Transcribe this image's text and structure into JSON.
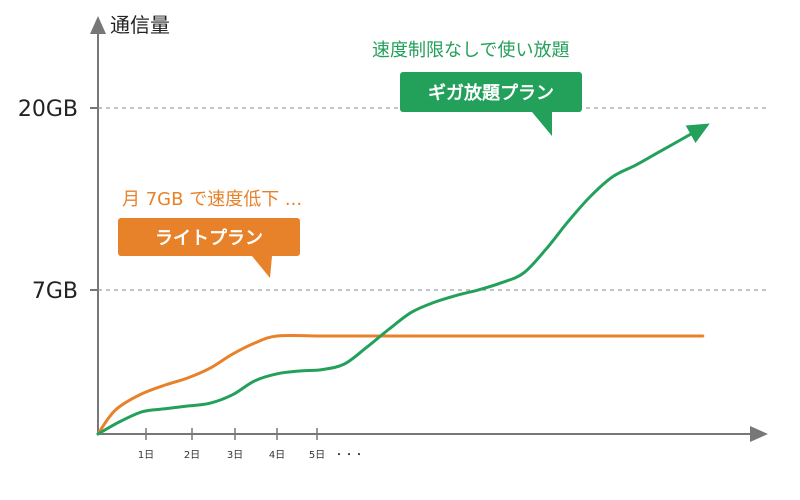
{
  "chart_data": {
    "type": "line",
    "ylabel": "通信量",
    "y_ticks": [
      "20GB",
      "7GB"
    ],
    "x_ticks": [
      "1日",
      "2日",
      "3日",
      "4日",
      "5日"
    ],
    "x_ellipsis": "・・・",
    "gridlines": "dashed at 7GB and 20GB",
    "series": [
      {
        "badge": "ライトプラン",
        "note": "月 7GB で速度低下 ...",
        "color": "#e8822a",
        "x": [
          0,
          0.25,
          0.5,
          1.0,
          1.5,
          2.0,
          2.5,
          3.0,
          3.5,
          4.0,
          5.0,
          6.0,
          8.0,
          10.0,
          12.0,
          13.5
        ],
        "values": [
          0,
          1.2,
          2.0,
          2.9,
          3.5,
          4.0,
          4.7,
          5.7,
          6.5,
          7.0,
          7.0,
          7.0,
          7.0,
          7.0,
          7.0,
          7.0
        ]
      },
      {
        "badge": "ギガ放題プラン",
        "note": "速度制限なしで使い放題",
        "color": "#23a05a",
        "x": [
          0,
          0.5,
          1.0,
          1.5,
          2.0,
          2.5,
          3.0,
          3.5,
          4.0,
          4.5,
          5.0,
          5.5,
          6.0,
          6.5,
          7.0,
          7.5,
          8.0,
          8.5,
          9.0,
          9.5,
          10.0,
          10.5,
          11.0,
          11.5,
          12.0,
          12.5,
          13.0,
          13.5
        ],
        "values": [
          0,
          0.9,
          1.6,
          1.8,
          2.0,
          2.2,
          2.8,
          3.8,
          4.3,
          4.5,
          4.6,
          5.0,
          6.2,
          7.5,
          8.7,
          9.4,
          9.9,
          10.3,
          10.8,
          11.5,
          13.2,
          15.2,
          17.0,
          18.4,
          19.2,
          20.1,
          21.0,
          21.9
        ]
      }
    ],
    "xlim": [
      0,
      14.5
    ],
    "ylim": [
      0,
      25
    ]
  }
}
